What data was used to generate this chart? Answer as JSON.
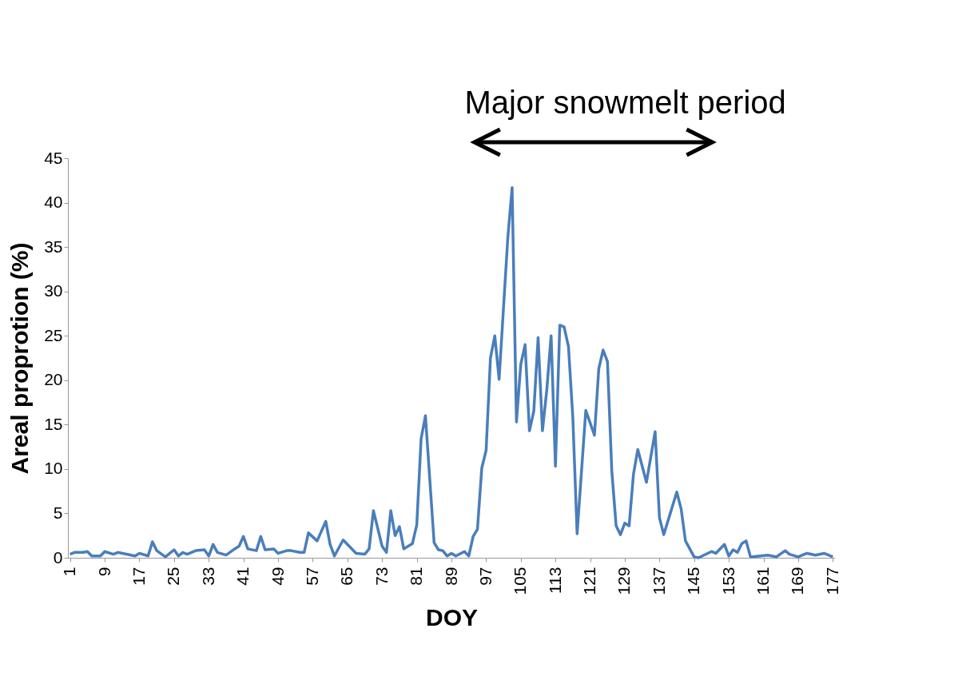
{
  "chart_data": {
    "type": "line",
    "xlabel": "DOY",
    "ylabel": "Areal proprotion (%)",
    "annotations": [
      "Major snowmelt period"
    ],
    "x": [
      1,
      2,
      4,
      5,
      6,
      8,
      9,
      11,
      12,
      14,
      16,
      17,
      19,
      20,
      21,
      23,
      25,
      26,
      27,
      28,
      30,
      32,
      33,
      34,
      35,
      37,
      39,
      40,
      41,
      42,
      44,
      45,
      46,
      48,
      49,
      51,
      52,
      54,
      55,
      56,
      58,
      60,
      61,
      62,
      64,
      65,
      67,
      69,
      70,
      71,
      73,
      74,
      75,
      76,
      77,
      78,
      80,
      81,
      82,
      83,
      85,
      86,
      87,
      88,
      89,
      90,
      92,
      93,
      94,
      95,
      96,
      97,
      98,
      99,
      100,
      102,
      103,
      104,
      105,
      106,
      107,
      108,
      109,
      110,
      111,
      112,
      113,
      114,
      115,
      116,
      117,
      118,
      120,
      122,
      123,
      124,
      125,
      126,
      127,
      128,
      129,
      130,
      131,
      132,
      134,
      136,
      137,
      138,
      141,
      142,
      143,
      145,
      146,
      149,
      150,
      152,
      153,
      154,
      155,
      156,
      157,
      158,
      162,
      164,
      166,
      167,
      169,
      171,
      173,
      175,
      177
    ],
    "values": [
      0.4,
      0.6,
      0.6,
      0.7,
      0.2,
      0.2,
      0.7,
      0.4,
      0.6,
      0.4,
      0.2,
      0.5,
      0.2,
      1.8,
      0.8,
      0.1,
      0.9,
      0.2,
      0.6,
      0.4,
      0.8,
      0.9,
      0.2,
      1.5,
      0.6,
      0.3,
      1.0,
      1.3,
      2.4,
      1.0,
      0.8,
      2.4,
      0.9,
      1.0,
      0.5,
      0.8,
      0.8,
      0.6,
      0.6,
      2.8,
      1.9,
      4.1,
      1.5,
      0.2,
      2.0,
      1.5,
      0.5,
      0.4,
      1.0,
      5.3,
      1.3,
      0.6,
      5.3,
      2.5,
      3.5,
      1.0,
      1.6,
      3.7,
      13.4,
      16.0,
      1.7,
      0.9,
      0.8,
      0.2,
      0.5,
      0.2,
      0.7,
      0.2,
      2.4,
      3.2,
      10.1,
      12.1,
      22.5,
      25,
      20.1,
      36,
      41.7,
      15.3,
      21.8,
      24,
      14.3,
      16.5,
      24.8,
      14.3,
      18.9,
      25,
      10.3,
      26.2,
      26,
      23.8,
      15.9,
      2.7,
      16.6,
      13.8,
      21.3,
      23.4,
      22.1,
      9.8,
      3.6,
      2.6,
      3.9,
      3.6,
      9.4,
      12.2,
      8.5,
      14.2,
      4.5,
      2.6,
      7.4,
      5.5,
      1.9,
      0.1,
      0,
      0.7,
      0.5,
      1.5,
      0.2,
      0.9,
      0.6,
      1.6,
      1.9,
      0.1,
      0.3,
      0.1,
      0.8,
      0.4,
      0.1,
      0.5,
      0.3,
      0.5,
      0.1
    ],
    "color": "#4a7ebb",
    "xlim": [
      0.5,
      177.5
    ],
    "xticks": [
      1,
      9,
      17,
      25,
      33,
      41,
      49,
      57,
      65,
      73,
      81,
      89,
      97,
      105,
      113,
      121,
      129,
      137,
      145,
      153,
      161,
      169,
      177
    ],
    "ylim": [
      0,
      45
    ],
    "yticks": [
      0,
      5,
      10,
      15,
      20,
      25,
      30,
      35,
      40,
      45
    ],
    "grid": false
  }
}
